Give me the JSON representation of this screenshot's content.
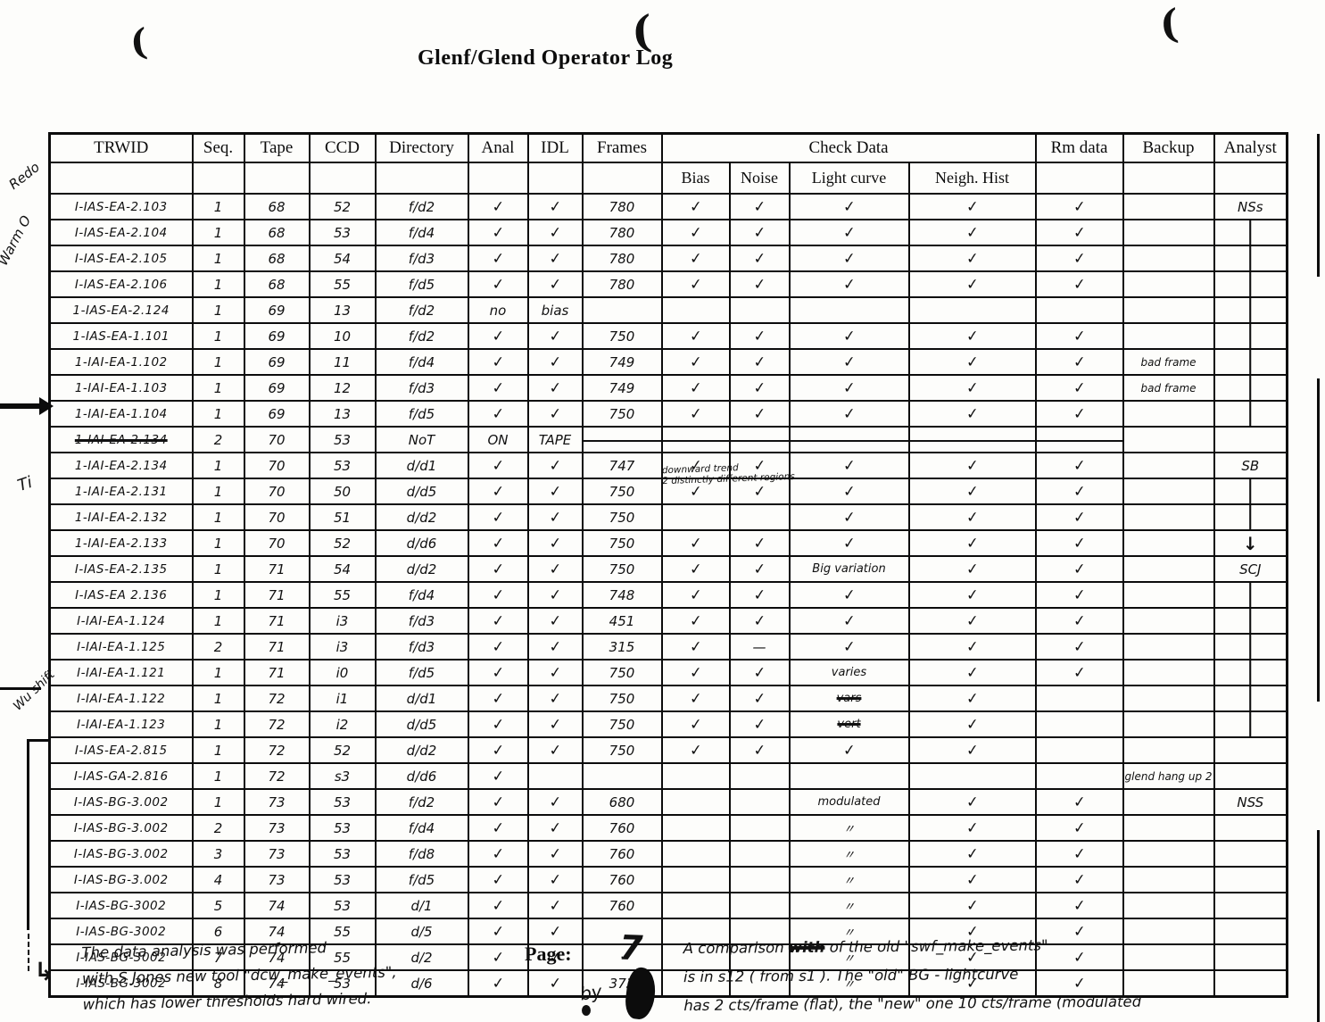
{
  "title": "Glenf/Glend Operator Log",
  "page": {
    "label": "Page:",
    "number": "7",
    "by_scribble": "by"
  },
  "icons": {
    "curve_arrow": "↳",
    "pen_mark": "("
  },
  "margin_notes": {
    "redo": "Redo",
    "warm": "Warm O",
    "ti": "Ti",
    "wu_shift": "Wu shift"
  },
  "annotation_2132": {
    "line1": "downward trend",
    "line2": "2 distinctly different regions"
  },
  "notes": {
    "left": [
      "The data analysis was performed",
      "with S Jones new tool \"dcw_make_events\",",
      "which has lower thresholds hard wired."
    ],
    "right_l1a": "A comparison ",
    "right_l1_struck": "with",
    "right_l1b": " of the old \"swf_make_events\"",
    "right_l2": "is in s12 ( from s1 ).  The \"old\" BG - lightcurve",
    "right_l3": "has 2 cts/frame (flat), the \"new\" one 10 cts/frame (modulated"
  },
  "table": {
    "headers": [
      "TRWID",
      "Seq.",
      "Tape",
      "CCD",
      "Directory",
      "Anal",
      "IDL",
      "Frames"
    ],
    "check_data_label": "Check Data",
    "check_sub": [
      "Bias",
      "Noise",
      "Light curve",
      "Neigh. Hist"
    ],
    "tail_headers": [
      "Rm data",
      "Backup",
      "Analyst"
    ],
    "rows": [
      {
        "trwid": "I-IAS-EA-2.103",
        "seq": "1",
        "tape": "68",
        "ccd": "52",
        "dir": "f/d2",
        "anal": "✓",
        "idl": "✓",
        "frames": "780",
        "bias": "✓",
        "noise": "✓",
        "lc": "✓",
        "nh": "✓",
        "rm": "✓",
        "backup": "",
        "analyst": "NSs"
      },
      {
        "trwid": "I-IAS-EA-2.104",
        "seq": "1",
        "tape": "68",
        "ccd": "53",
        "dir": "f/d4",
        "anal": "✓",
        "idl": "✓",
        "frames": "780",
        "bias": "✓",
        "noise": "✓",
        "lc": "✓",
        "nh": "✓",
        "rm": "✓",
        "backup": "",
        "analyst": "│"
      },
      {
        "trwid": "I-IAS-EA-2.105",
        "seq": "1",
        "tape": "68",
        "ccd": "54",
        "dir": "f/d3",
        "anal": "✓",
        "idl": "✓",
        "frames": "780",
        "bias": "✓",
        "noise": "✓",
        "lc": "✓",
        "nh": "✓",
        "rm": "✓",
        "backup": "",
        "analyst": "│"
      },
      {
        "trwid": "I-IAS-EA-2.106",
        "seq": "1",
        "tape": "68",
        "ccd": "55",
        "dir": "f/d5",
        "anal": "✓",
        "idl": "✓",
        "frames": "780",
        "bias": "✓",
        "noise": "✓",
        "lc": "✓",
        "nh": "✓",
        "rm": "✓",
        "backup": "",
        "analyst": "│"
      },
      {
        "trwid": "1-IAS-EA-2.124",
        "seq": "1",
        "tape": "69",
        "ccd": "13",
        "dir": "f/d2",
        "anal": "no",
        "idl": "bias",
        "frames": "",
        "bias": "",
        "noise": "",
        "lc": "",
        "nh": "",
        "rm": "",
        "backup": "",
        "analyst": "│"
      },
      {
        "trwid": "1-IAS-EA-1.101",
        "seq": "1",
        "tape": "69",
        "ccd": "10",
        "dir": "f/d2",
        "anal": "✓",
        "idl": "✓",
        "frames": "750",
        "bias": "✓",
        "noise": "✓",
        "lc": "✓",
        "nh": "✓",
        "rm": "✓",
        "backup": "",
        "analyst": "│"
      },
      {
        "trwid": "1-IAI-EA-1.102",
        "seq": "1",
        "tape": "69",
        "ccd": "11",
        "dir": "f/d4",
        "anal": "✓",
        "idl": "✓",
        "frames": "749",
        "bias": "✓",
        "noise": "✓",
        "lc": "✓",
        "nh": "✓",
        "rm": "✓",
        "backup": "bad frame",
        "analyst": "│"
      },
      {
        "trwid": "1-IAI-EA-1.103",
        "seq": "1",
        "tape": "69",
        "ccd": "12",
        "dir": "f/d3",
        "anal": "✓",
        "idl": "✓",
        "frames": "749",
        "bias": "✓",
        "noise": "✓",
        "lc": "✓",
        "nh": "✓",
        "rm": "✓",
        "backup": "bad frame",
        "analyst": "│"
      },
      {
        "trwid": "1-IAI-EA-1.104",
        "seq": "1",
        "tape": "69",
        "ccd": "13",
        "dir": "f/d5",
        "anal": "✓",
        "idl": "✓",
        "frames": "750",
        "bias": "✓",
        "noise": "✓",
        "lc": "✓",
        "nh": "✓",
        "rm": "✓",
        "backup": "",
        "analyst": "│"
      },
      {
        "trwid": "1-IAI-EA-2.134",
        "strike": true,
        "seq": "2",
        "tape": "70",
        "ccd": "53",
        "dir": "NoT",
        "anal": "ON",
        "idl": "TAPE",
        "frames": "",
        "bias": "",
        "noise": "",
        "lc": "",
        "nh": "",
        "rm": "",
        "backup": "",
        "analyst": ""
      },
      {
        "trwid": "1-IAI-EA-2.134",
        "seq": "1",
        "tape": "70",
        "ccd": "53",
        "dir": "d/d1",
        "anal": "✓",
        "idl": "✓",
        "frames": "747",
        "bias": "✓",
        "noise": "✓",
        "lc": "✓",
        "nh": "✓",
        "rm": "✓",
        "backup": "",
        "analyst": "SB"
      },
      {
        "trwid": "1-IAI-EA-2.131",
        "seq": "1",
        "tape": "70",
        "ccd": "50",
        "dir": "d/d5",
        "anal": "✓",
        "idl": "✓",
        "frames": "750",
        "bias": "✓",
        "noise": "✓",
        "lc": "✓",
        "nh": "✓",
        "rm": "✓",
        "backup": "",
        "analyst": "│"
      },
      {
        "trwid": "1-IAI-EA-2.132",
        "seq": "1",
        "tape": "70",
        "ccd": "51",
        "dir": "d/d2",
        "anal": "✓",
        "idl": "✓",
        "frames": "750",
        "bias": "",
        "noise": "",
        "lc": "✓",
        "nh": "✓",
        "rm": "✓",
        "backup": "",
        "analyst": "│"
      },
      {
        "trwid": "1-IAI-EA-2.133",
        "seq": "1",
        "tape": "70",
        "ccd": "52",
        "dir": "d/d6",
        "anal": "✓",
        "idl": "✓",
        "frames": "750",
        "bias": "✓",
        "noise": "✓",
        "lc": "✓",
        "nh": "✓",
        "rm": "✓",
        "backup": "",
        "analyst": "↓"
      },
      {
        "trwid": "I-IAS-EA-2.135",
        "seq": "1",
        "tape": "71",
        "ccd": "54",
        "dir": "d/d2",
        "anal": "✓",
        "idl": "✓",
        "frames": "750",
        "bias": "✓",
        "noise": "✓",
        "lc": "Big variation",
        "nh": "✓",
        "rm": "✓",
        "backup": "",
        "analyst": "SCJ"
      },
      {
        "trwid": "I-IAS-EA 2.136",
        "seq": "1",
        "tape": "71",
        "ccd": "55",
        "dir": "f/d4",
        "anal": "✓",
        "idl": "✓",
        "frames": "748",
        "bias": "✓",
        "noise": "✓",
        "lc": "✓",
        "nh": "✓",
        "rm": "✓",
        "backup": "",
        "analyst": "│"
      },
      {
        "trwid": "I-IAI-EA-1.124",
        "seq": "1",
        "tape": "71",
        "ccd": "i3",
        "dir": "f/d3",
        "anal": "✓",
        "idl": "✓",
        "frames": "451",
        "bias": "✓",
        "noise": "✓",
        "lc": "✓",
        "nh": "✓",
        "rm": "✓",
        "backup": "",
        "analyst": "│"
      },
      {
        "trwid": "I-IAI-EA-1.125",
        "seq": "2",
        "tape": "71",
        "ccd": "i3",
        "dir": "f/d3",
        "anal": "✓",
        "idl": "✓",
        "frames": "315",
        "bias": "✓",
        "noise": "—",
        "lc": "✓",
        "nh": "✓",
        "rm": "✓",
        "backup": "",
        "analyst": "│"
      },
      {
        "trwid": "I-IAI-EA-1.121",
        "seq": "1",
        "tape": "71",
        "ccd": "i0",
        "dir": "f/d5",
        "anal": "✓",
        "idl": "✓",
        "frames": "750",
        "bias": "✓",
        "noise": "✓",
        "lc": "varies",
        "nh": "✓",
        "rm": "✓",
        "backup": "",
        "analyst": "│"
      },
      {
        "trwid": "I-IAI-EA-1.122",
        "seq": "1",
        "tape": "72",
        "ccd": "i1",
        "dir": "d/d1",
        "anal": "✓",
        "idl": "✓",
        "frames": "750",
        "bias": "✓",
        "noise": "✓",
        "lc": "vars",
        "lc_struck": true,
        "nh": "✓",
        "rm": "",
        "backup": "",
        "analyst": "│"
      },
      {
        "trwid": "I-IAI-EA-1.123",
        "seq": "1",
        "tape": "72",
        "ccd": "i2",
        "dir": "d/d5",
        "anal": "✓",
        "idl": "✓",
        "frames": "750",
        "bias": "✓",
        "noise": "✓",
        "lc": "vert",
        "lc_struck": true,
        "nh": "✓",
        "rm": "",
        "backup": "",
        "analyst": "│"
      },
      {
        "trwid": "I-IAS-EA-2.815",
        "seq": "1",
        "tape": "72",
        "ccd": "52",
        "dir": "d/d2",
        "anal": "✓",
        "idl": "✓",
        "frames": "750",
        "bias": "✓",
        "noise": "✓",
        "lc": "✓",
        "nh": "✓",
        "rm": "",
        "backup": "",
        "analyst": ""
      },
      {
        "trwid": "I-IAS-GA-2.816",
        "seq": "1",
        "tape": "72",
        "ccd": "s3",
        "dir": "d/d6",
        "anal": "✓",
        "idl": "",
        "frames": "",
        "bias": "",
        "noise": "",
        "lc": "",
        "nh": "",
        "rm": "",
        "backup": "glend hang up 2",
        "analyst": ""
      },
      {
        "trwid": "I-IAS-BG-3.002",
        "seq": "1",
        "tape": "73",
        "ccd": "53",
        "dir": "f/d2",
        "anal": "✓",
        "idl": "✓",
        "frames": "680",
        "bias": "",
        "noise": "",
        "lc": "modulated",
        "nh": "✓",
        "rm": "✓",
        "backup": "",
        "analyst": "NSS"
      },
      {
        "trwid": "I-IAS-BG-3.002",
        "seq": "2",
        "tape": "73",
        "ccd": "53",
        "dir": "f/d4",
        "anal": "✓",
        "idl": "✓",
        "frames": "760",
        "bias": "",
        "noise": "",
        "lc": "〃",
        "nh": "✓",
        "rm": "✓",
        "backup": "",
        "analyst": ""
      },
      {
        "trwid": "I-IAS-BG-3.002",
        "seq": "3",
        "tape": "73",
        "ccd": "53",
        "dir": "f/d8",
        "anal": "✓",
        "idl": "✓",
        "frames": "760",
        "bias": "",
        "noise": "",
        "lc": "〃",
        "nh": "✓",
        "rm": "✓",
        "backup": "",
        "analyst": ""
      },
      {
        "trwid": "I-IAS-BG-3.002",
        "seq": "4",
        "tape": "73",
        "ccd": "53",
        "dir": "f/d5",
        "anal": "✓",
        "idl": "✓",
        "frames": "760",
        "bias": "",
        "noise": "",
        "lc": "〃",
        "nh": "✓",
        "rm": "✓",
        "backup": "",
        "analyst": ""
      },
      {
        "trwid": "I-IAS-BG-3002",
        "seq": "5",
        "tape": "74",
        "ccd": "53",
        "dir": "d/1",
        "anal": "✓",
        "idl": "✓",
        "frames": "760",
        "bias": "",
        "noise": "",
        "lc": "〃",
        "nh": "✓",
        "rm": "✓",
        "backup": "",
        "analyst": ""
      },
      {
        "trwid": "I-IAS-BG-3002",
        "seq": "6",
        "tape": "74",
        "ccd": "55",
        "dir": "d/5",
        "anal": "✓",
        "idl": "✓",
        "frames": "",
        "bias": "",
        "noise": "",
        "lc": "〃",
        "nh": "✓",
        "rm": "✓",
        "backup": "",
        "analyst": ""
      },
      {
        "trwid": "I-IAS-BG-3002",
        "seq": "7",
        "tape": "74",
        "ccd": "55",
        "dir": "d/2",
        "anal": "✓",
        "idl": "✓",
        "frames": "·",
        "bias": "",
        "noise": "",
        "lc": "〃",
        "nh": "✓",
        "rm": "✓",
        "backup": "",
        "analyst": ""
      },
      {
        "trwid": "I-IAS-BG-3002",
        "seq": "8",
        "tape": "74",
        "ccd": "53",
        "dir": "d/6",
        "anal": "✓",
        "idl": "✓",
        "frames": "373",
        "bias": "",
        "noise": "",
        "lc": "〃",
        "nh": "✓",
        "rm": "✓",
        "backup": "",
        "analyst": ""
      }
    ]
  }
}
